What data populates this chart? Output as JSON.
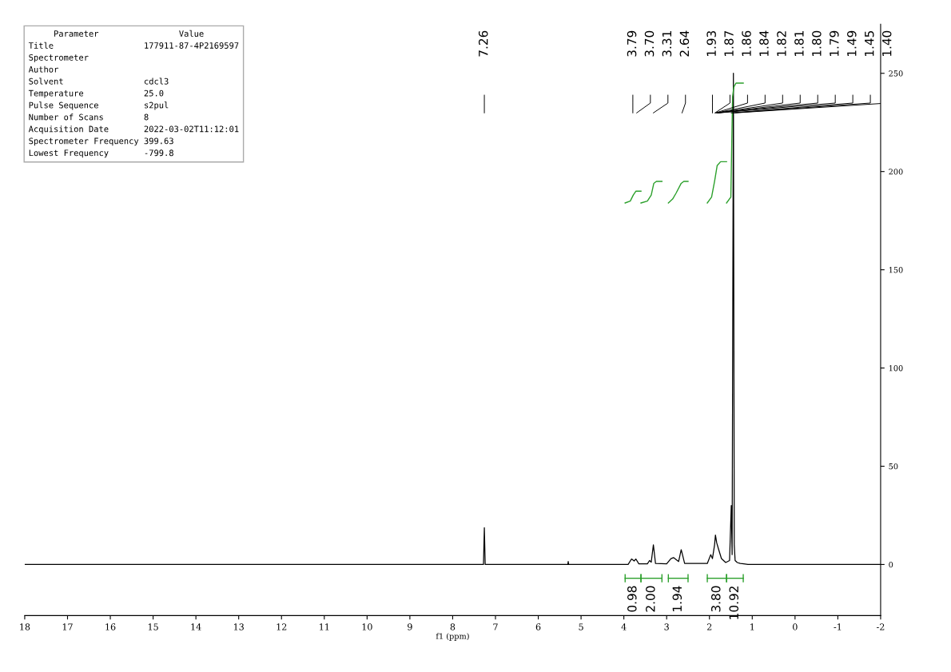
{
  "chart_data": {
    "type": "line",
    "xlabel": "f1 (ppm)",
    "xlim": [
      18,
      -2
    ],
    "xticks": [
      18,
      17,
      16,
      15,
      14,
      13,
      12,
      11,
      10,
      9,
      8,
      7,
      6,
      5,
      4,
      3,
      2,
      1,
      0,
      -1,
      -2
    ],
    "ylim": [
      -26,
      275
    ],
    "yticks": [
      0,
      50,
      100,
      150,
      200,
      250
    ],
    "grid": false,
    "marker": "none",
    "line_style": "solid",
    "series": [
      {
        "color": "#000000",
        "x": [
          18,
          7.28,
          7.26,
          7.24,
          5.31,
          5.3,
          5.29,
          3.9,
          3.82,
          3.76,
          3.72,
          3.65,
          3.45,
          3.4,
          3.36,
          3.31,
          3.26,
          3.0,
          2.9,
          2.84,
          2.72,
          2.66,
          2.63,
          2.58,
          2.05,
          1.97,
          1.93,
          1.88,
          1.86,
          1.83,
          1.79,
          1.72,
          1.62,
          1.53,
          1.49,
          1.47,
          1.44,
          1.42,
          1.4,
          1.35,
          1.28,
          1.2,
          1.1,
          -2
        ],
        "values": [
          0,
          0,
          18.7,
          0,
          0,
          1.5,
          0,
          0,
          2.8,
          1.8,
          2.8,
          0.3,
          0.3,
          2.0,
          1.2,
          10,
          0.5,
          0.3,
          3.0,
          3.5,
          1.5,
          7.5,
          5,
          0.5,
          0.5,
          5,
          3,
          10,
          15,
          11,
          8,
          3,
          1,
          2,
          30,
          5,
          250,
          10,
          2,
          1,
          0.5,
          0.3,
          0,
          0
        ]
      },
      {
        "color": "#2ca02c",
        "x": [
          3.97,
          3.85,
          3.78,
          3.72,
          3.6
        ],
        "values": [
          184,
          185,
          188,
          190,
          190
        ]
      },
      {
        "color": "#2ca02c",
        "x": [
          3.6,
          3.45,
          3.36,
          3.3,
          3.24,
          3.11
        ],
        "values": [
          184,
          185,
          188,
          194,
          195,
          195
        ]
      },
      {
        "color": "#2ca02c",
        "x": [
          2.96,
          2.86,
          2.78,
          2.66,
          2.6,
          2.5
        ],
        "values": [
          184,
          186,
          189,
          194,
          195,
          195
        ]
      },
      {
        "color": "#2ca02c",
        "x": [
          2.05,
          1.95,
          1.88,
          1.82,
          1.74,
          1.6
        ],
        "values": [
          184,
          187,
          195,
          203,
          205,
          205
        ]
      },
      {
        "color": "#2ca02c",
        "x": [
          1.6,
          1.5,
          1.46,
          1.43,
          1.38,
          1.21
        ],
        "values": [
          184,
          187,
          238,
          243,
          245,
          245
        ]
      }
    ],
    "annotations": [
      "7.26",
      "3.79",
      "3.70",
      "3.31",
      "2.64",
      "1.93",
      "1.87",
      "1.86",
      "1.84",
      "1.82",
      "1.81",
      "1.80",
      "1.79",
      "1.49",
      "1.45",
      "1.40",
      "0.98",
      "2.00",
      "1.94",
      "3.80",
      "10.92",
      "     Parameter                Value\nTitle                  177911-87-4P2169597\nSpectrometer\nAuthor\nSolvent                cdcl3\nTemperature            25.0\nPulse Sequence         s2pul\nNumber of Scans        8\nAcquisition Date       2022-03-02T11:12:01\nSpectrometer Frequency 399.63\nLowest Frequency       -799.8"
    ]
  }
}
